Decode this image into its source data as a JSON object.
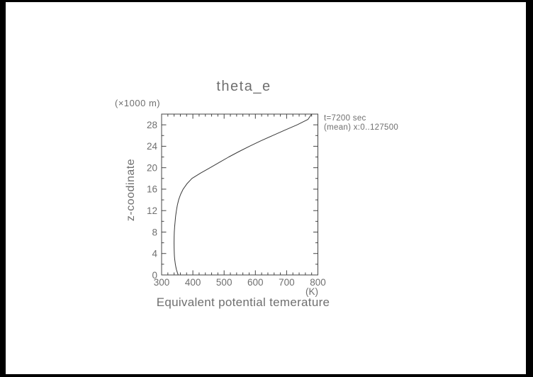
{
  "colors": {
    "frame": "#000000",
    "background": "#ffffff",
    "text": "#6f6f6f",
    "axis": "#444444",
    "curve": "#383838"
  },
  "chart_data": {
    "type": "line",
    "title": "theta_e",
    "y_unit_label": "(×1000 m)",
    "ylabel": "z-coodinate",
    "xlabel": "Equivalent potential temerature",
    "x_unit_label": "(K)",
    "annotation": [
      "t=7200 sec",
      "(mean) x:0..127500"
    ],
    "xlim": [
      300,
      800
    ],
    "ylim": [
      0,
      30
    ],
    "x_ticks": [
      300,
      400,
      500,
      600,
      700,
      800
    ],
    "x_minor_step": 20,
    "y_ticks": [
      0,
      4,
      8,
      12,
      16,
      20,
      24,
      28
    ],
    "y_minor_step": 2,
    "grid": false,
    "legend": "none",
    "series": [
      {
        "name": "mean equivalent potential temperature profile",
        "points": [
          [
            353,
            0
          ],
          [
            350,
            0.5
          ],
          [
            347.5,
            1
          ],
          [
            345.5,
            1.5
          ],
          [
            344,
            2
          ],
          [
            342.8,
            2.5
          ],
          [
            341.8,
            3
          ],
          [
            341.1,
            3.5
          ],
          [
            340.6,
            4
          ],
          [
            340.1,
            5
          ],
          [
            339.8,
            6
          ],
          [
            340.1,
            7
          ],
          [
            340.7,
            8
          ],
          [
            341.8,
            9
          ],
          [
            343.2,
            10
          ],
          [
            345,
            11
          ],
          [
            347.3,
            12
          ],
          [
            350.3,
            13
          ],
          [
            354.5,
            14
          ],
          [
            360.5,
            15
          ],
          [
            369,
            16
          ],
          [
            381,
            17
          ],
          [
            397,
            18
          ],
          [
            425,
            19
          ],
          [
            455,
            20
          ],
          [
            485,
            21
          ],
          [
            515,
            22
          ],
          [
            547,
            23
          ],
          [
            581,
            24
          ],
          [
            617,
            25
          ],
          [
            655,
            26
          ],
          [
            694,
            27
          ],
          [
            734,
            28
          ],
          [
            768,
            29
          ],
          [
            780,
            30
          ]
        ]
      }
    ]
  }
}
